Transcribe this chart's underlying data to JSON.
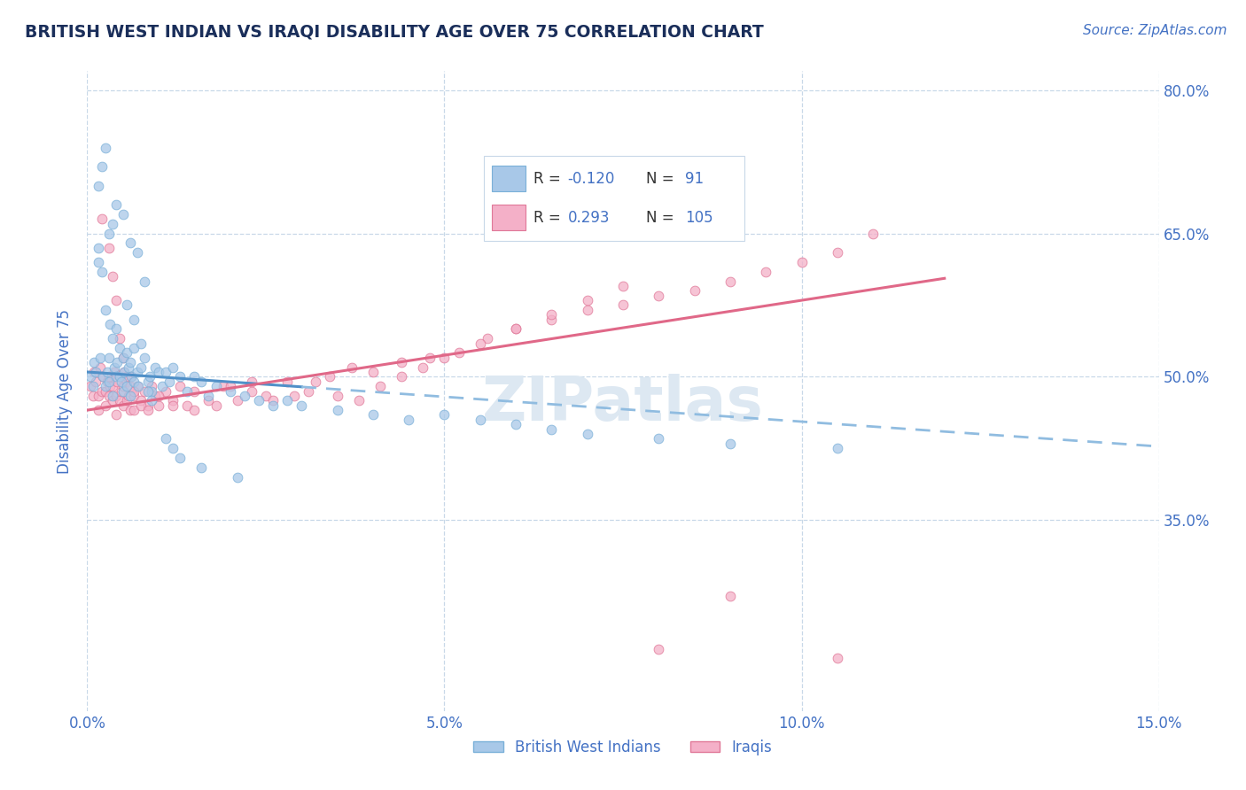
{
  "title": "BRITISH WEST INDIAN VS IRAQI DISABILITY AGE OVER 75 CORRELATION CHART",
  "source": "Source: ZipAtlas.com",
  "xlabel_vals": [
    0.0,
    5.0,
    10.0,
    15.0
  ],
  "ylabel_vals": [
    80.0,
    65.0,
    50.0,
    35.0
  ],
  "xlim": [
    0.0,
    15.0
  ],
  "ylim": [
    15.0,
    82.0
  ],
  "ylabel": "Disability Age Over 75",
  "color_blue": "#a8c8e8",
  "color_pink": "#f4b0c8",
  "edge_blue": "#7ab0d8",
  "edge_pink": "#e07898",
  "trendline_blue_solid": "#5090c8",
  "trendline_blue_dash": "#90bce0",
  "trendline_pink": "#e06888",
  "watermark": "ZIPatlas",
  "watermark_color": "#dde8f2",
  "bg_color": "#ffffff",
  "grid_color": "#c8d8e8",
  "title_color": "#1a2e5a",
  "axis_label_color": "#4472c4",
  "tick_color": "#4472c4",
  "blue_intercept": 50.5,
  "blue_slope": -0.52,
  "pink_intercept": 46.5,
  "pink_slope": 1.15,
  "blue_solid_x_end": 3.0,
  "scatter_blue_x": [
    0.05,
    0.08,
    0.1,
    0.12,
    0.15,
    0.15,
    0.18,
    0.2,
    0.22,
    0.25,
    0.25,
    0.28,
    0.3,
    0.3,
    0.32,
    0.35,
    0.35,
    0.38,
    0.4,
    0.4,
    0.42,
    0.45,
    0.45,
    0.48,
    0.5,
    0.5,
    0.52,
    0.55,
    0.55,
    0.58,
    0.6,
    0.6,
    0.62,
    0.65,
    0.65,
    0.7,
    0.72,
    0.75,
    0.8,
    0.85,
    0.88,
    0.9,
    0.95,
    1.0,
    1.05,
    1.1,
    1.15,
    1.2,
    1.3,
    1.4,
    1.5,
    1.6,
    1.7,
    1.8,
    2.0,
    2.2,
    2.4,
    2.6,
    2.8,
    3.0,
    3.5,
    4.0,
    4.5,
    5.0,
    5.5,
    6.0,
    6.5,
    7.0,
    8.0,
    9.0,
    10.5,
    0.3,
    0.35,
    0.4,
    0.5,
    0.6,
    0.7,
    0.8,
    0.25,
    0.15,
    0.2,
    0.55,
    0.65,
    0.75,
    0.85,
    0.9,
    1.1,
    1.2,
    1.3,
    1.6,
    2.1
  ],
  "scatter_blue_y": [
    50.0,
    49.0,
    51.5,
    50.5,
    62.0,
    63.5,
    52.0,
    61.0,
    50.0,
    49.0,
    57.0,
    50.5,
    52.0,
    49.5,
    55.5,
    48.0,
    54.0,
    51.0,
    50.0,
    55.0,
    51.5,
    50.0,
    53.0,
    49.5,
    48.5,
    52.0,
    50.5,
    49.0,
    52.5,
    51.0,
    48.0,
    51.5,
    50.0,
    49.5,
    53.0,
    50.5,
    49.0,
    51.0,
    52.0,
    49.5,
    50.0,
    48.5,
    51.0,
    50.5,
    49.0,
    50.5,
    49.5,
    51.0,
    50.0,
    48.5,
    50.0,
    49.5,
    48.0,
    49.0,
    48.5,
    48.0,
    47.5,
    47.0,
    47.5,
    47.0,
    46.5,
    46.0,
    45.5,
    46.0,
    45.5,
    45.0,
    44.5,
    44.0,
    43.5,
    43.0,
    42.5,
    65.0,
    66.0,
    68.0,
    67.0,
    64.0,
    63.0,
    60.0,
    74.0,
    70.0,
    72.0,
    57.5,
    56.0,
    53.5,
    48.5,
    47.5,
    43.5,
    42.5,
    41.5,
    40.5,
    39.5
  ],
  "scatter_pink_x": [
    0.05,
    0.08,
    0.1,
    0.12,
    0.15,
    0.15,
    0.18,
    0.2,
    0.22,
    0.25,
    0.25,
    0.28,
    0.3,
    0.3,
    0.32,
    0.35,
    0.35,
    0.38,
    0.4,
    0.4,
    0.42,
    0.45,
    0.45,
    0.48,
    0.5,
    0.5,
    0.52,
    0.55,
    0.55,
    0.58,
    0.6,
    0.6,
    0.62,
    0.65,
    0.65,
    0.7,
    0.75,
    0.8,
    0.85,
    0.9,
    0.95,
    1.0,
    1.1,
    1.2,
    1.3,
    1.4,
    1.5,
    1.7,
    1.9,
    2.1,
    2.3,
    2.5,
    2.8,
    3.1,
    3.4,
    3.7,
    4.0,
    4.4,
    4.8,
    5.2,
    5.6,
    6.0,
    6.5,
    7.0,
    7.5,
    8.0,
    8.5,
    9.0,
    9.5,
    10.0,
    10.5,
    11.0,
    0.2,
    0.3,
    0.35,
    0.4,
    0.45,
    0.5,
    0.55,
    0.65,
    0.75,
    0.85,
    1.0,
    1.2,
    1.5,
    1.8,
    2.0,
    2.3,
    2.6,
    2.9,
    3.2,
    3.5,
    3.8,
    4.1,
    4.4,
    4.7,
    5.0,
    5.5,
    6.0,
    6.5,
    7.0,
    7.5,
    8.0,
    9.0,
    10.5
  ],
  "scatter_pink_y": [
    49.0,
    48.0,
    50.5,
    49.5,
    48.0,
    46.5,
    51.0,
    48.5,
    50.0,
    48.5,
    47.0,
    49.5,
    48.0,
    50.0,
    49.0,
    47.5,
    49.0,
    50.5,
    48.0,
    46.0,
    49.5,
    47.5,
    50.0,
    48.5,
    47.0,
    49.0,
    50.5,
    47.5,
    49.5,
    48.0,
    46.5,
    49.0,
    50.0,
    48.0,
    46.5,
    49.0,
    47.5,
    48.5,
    47.0,
    49.0,
    48.0,
    47.0,
    48.5,
    47.5,
    49.0,
    47.0,
    48.5,
    47.5,
    49.0,
    47.5,
    49.5,
    48.0,
    49.5,
    48.5,
    50.0,
    51.0,
    50.5,
    51.5,
    52.0,
    52.5,
    54.0,
    55.0,
    56.0,
    57.0,
    57.5,
    58.5,
    59.0,
    60.0,
    61.0,
    62.0,
    63.0,
    65.0,
    66.5,
    63.5,
    60.5,
    58.0,
    54.0,
    52.0,
    50.0,
    48.5,
    47.0,
    46.5,
    48.0,
    47.0,
    46.5,
    47.0,
    49.0,
    48.5,
    47.5,
    48.0,
    49.5,
    48.0,
    47.5,
    49.0,
    50.0,
    51.0,
    52.0,
    53.5,
    55.0,
    56.5,
    58.0,
    59.5,
    21.5,
    27.0,
    20.5
  ]
}
